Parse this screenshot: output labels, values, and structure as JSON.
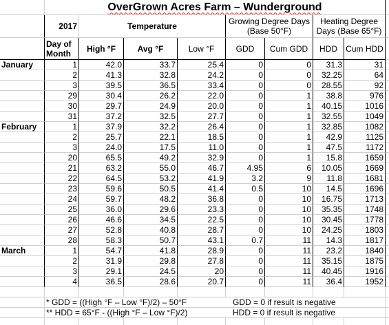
{
  "title": "OverGrown Acres Farm – Wunderground",
  "header": {
    "year": "2017",
    "temperature": "Temperature",
    "gdd_group": "Growing Degree Days (Base 50°F)",
    "hdd_group": "Heating Degree Days (Base 65°F)",
    "columns": [
      "Day of Month",
      "High °F",
      "Avg °F",
      "Low °F",
      "GDD",
      "Cum GDD",
      "HDD",
      "Cum HDD"
    ]
  },
  "groups": [
    {
      "month": "January",
      "rows": [
        [
          "1",
          "42.0",
          "33.7",
          "25.4",
          "0",
          "0",
          "31.3",
          "31"
        ],
        [
          "2",
          "41.3",
          "32.8",
          "24.2",
          "0",
          "0",
          "32.25",
          "64"
        ],
        [
          "3",
          "39.5",
          "36.5",
          "33.4",
          "0",
          "0",
          "28.55",
          "92"
        ],
        [
          "29",
          "30.4",
          "26.2",
          "22.0",
          "0",
          "1",
          "38.8",
          "976"
        ],
        [
          "30",
          "29.7",
          "24.9",
          "20.0",
          "0",
          "1",
          "40.15",
          "1016"
        ],
        [
          "31",
          "37.2",
          "32.5",
          "27.7",
          "0",
          "1",
          "32.55",
          "1049"
        ]
      ]
    },
    {
      "month": "February",
      "rows": [
        [
          "1",
          "37.9",
          "32.2",
          "26.4",
          "0",
          "1",
          "32.85",
          "1082"
        ],
        [
          "2",
          "25.7",
          "22.1",
          "18.5",
          "0",
          "1",
          "42.9",
          "1125"
        ],
        [
          "3",
          "24.0",
          "17.5",
          "11.0",
          "0",
          "1",
          "47.5",
          "1172"
        ],
        [
          "20",
          "65.5",
          "49.2",
          "32.9",
          "0",
          "1",
          "15.8",
          "1659"
        ],
        [
          "21",
          "63.2",
          "55.0",
          "46.7",
          "4.95",
          "6",
          "10.05",
          "1669"
        ],
        [
          "22",
          "64.5",
          "53.2",
          "41.9",
          "3.2",
          "9",
          "11.8",
          "1681"
        ],
        [
          "23",
          "59.6",
          "50.5",
          "41.4",
          "0.5",
          "10",
          "14.5",
          "1696"
        ],
        [
          "24",
          "59.7",
          "48.2",
          "36.8",
          "0",
          "10",
          "16.75",
          "1713"
        ],
        [
          "25",
          "36.0",
          "29.6",
          "23.3",
          "0",
          "10",
          "35.35",
          "1748"
        ],
        [
          "26",
          "46.6",
          "34.5",
          "22.5",
          "0",
          "10",
          "30.45",
          "1778"
        ],
        [
          "27",
          "52.8",
          "40.8",
          "28.7",
          "0",
          "10",
          "24.25",
          "1803"
        ],
        [
          "28",
          "58.3",
          "50.7",
          "43.1",
          "0.7",
          "11",
          "14.3",
          "1817"
        ]
      ]
    },
    {
      "month": "March",
      "rows": [
        [
          "1",
          "54.7",
          "41.8",
          "28.9",
          "0",
          "11",
          "23.2",
          "1840"
        ],
        [
          "2",
          "31.9",
          "29.8",
          "27.8",
          "0",
          "11",
          "35.15",
          "1875"
        ],
        [
          "3",
          "29.1",
          "24.5",
          "20",
          "0",
          "11",
          "40.45",
          "1916"
        ],
        [
          "4",
          "36.5",
          "28.6",
          "20.7",
          "0",
          "11",
          "36.4",
          "1952"
        ]
      ]
    }
  ],
  "notes": [
    [
      "* GDD = ((High °F – Low °F)/2) – 50°F",
      "GDD = 0 if result is negative"
    ],
    [
      "** HDD = 65°F - ((High °F – Low °F)/2)",
      "HDD = 0 if result is negative"
    ]
  ]
}
